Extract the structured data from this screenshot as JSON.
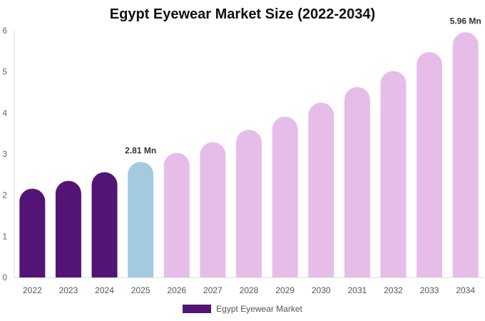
{
  "chart_data": {
    "type": "bar",
    "title": "Egypt Eyewear Market Size (2022-2034)",
    "xlabel": "",
    "ylabel": "",
    "categories": [
      "2022",
      "2023",
      "2024",
      "2025",
      "2026",
      "2027",
      "2028",
      "2029",
      "2030",
      "2031",
      "2032",
      "2033",
      "2034"
    ],
    "series": [
      {
        "name": "Egypt Eyewear Market",
        "values": [
          2.16,
          2.35,
          2.56,
          2.81,
          3.03,
          3.29,
          3.59,
          3.91,
          4.25,
          4.63,
          5.02,
          5.48,
          5.96
        ]
      }
    ],
    "ylim": [
      0,
      6
    ],
    "yticks": [
      "0",
      "1",
      "2",
      "3",
      "4",
      "5",
      "6"
    ],
    "data_labels": [
      {
        "index": 3,
        "text": "2.81 Mn"
      },
      {
        "index": 12,
        "text": "5.96 Mn"
      }
    ],
    "bar_colors": [
      "#541475",
      "#541475",
      "#541475",
      "#a4cadf",
      "#e6bde8",
      "#e6bde8",
      "#e6bde8",
      "#e6bde8",
      "#e6bde8",
      "#e6bde8",
      "#e6bde8",
      "#e6bde8",
      "#e6bde8"
    ],
    "legend_color": "#541475",
    "grid": false,
    "legend_position": "bottom-center"
  }
}
